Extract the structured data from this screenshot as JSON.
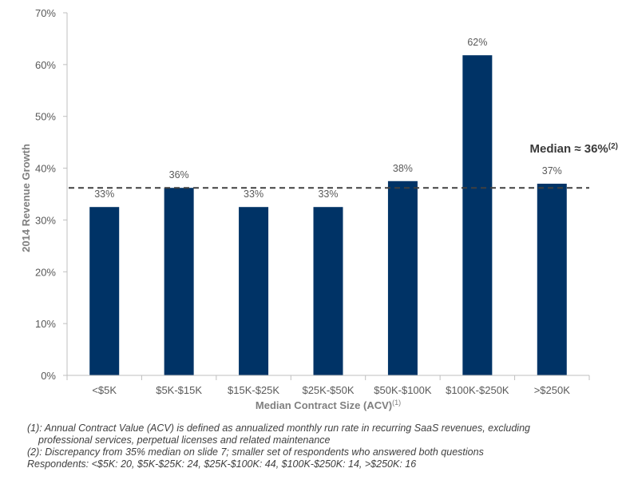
{
  "chart_data": {
    "type": "bar",
    "categories": [
      "<$5K",
      "$5K-$15K",
      "$15K-$25K",
      "$25K-$50K",
      "$50K-$100K",
      "$100K-$250K",
      ">$250K"
    ],
    "values": [
      32.5,
      36.2,
      32.5,
      32.5,
      37.5,
      61.8,
      37.0
    ],
    "data_labels": [
      "33%",
      "36%",
      "33%",
      "33%",
      "38%",
      "62%",
      "37%"
    ],
    "xlabel": "Median Contract Size (ACV)",
    "xlabel_sup": "(1)",
    "ylabel": "2014 Revenue Growth",
    "ylim": [
      0,
      70
    ],
    "yticks": [
      "0%",
      "10%",
      "20%",
      "30%",
      "40%",
      "50%",
      "60%",
      "70%"
    ],
    "grid": false,
    "bar_color": "#003366",
    "median": {
      "value": 36.2,
      "label": "Median ≈ 36%",
      "label_sup": "(2)",
      "line_color": "#404040"
    }
  },
  "footnotes": {
    "line1": "(1): Annual Contract Value (ACV) is defined as annualized monthly run rate in recurring SaaS revenues, excluding",
    "line1b": "professional services, perpetual licenses and related maintenance",
    "line2": "(2): Discrepancy from 35% median on slide 7; smaller set of respondents who answered both questions",
    "line3": "Respondents: <$5K: 20, $5K-$25K: 24, $25K-$100K: 44, $100K-$250K: 14, >$250K: 16"
  }
}
